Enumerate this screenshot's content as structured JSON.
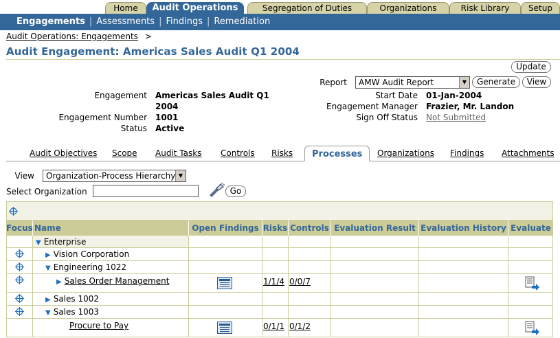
{
  "top_tabs": [
    {
      "label": "Home"
    },
    {
      "label": "Audit Operations"
    },
    {
      "label": "Segregation of Duties"
    },
    {
      "label": "Organizations"
    },
    {
      "label": "Risk Library"
    },
    {
      "label": "Setup"
    }
  ],
  "subnav": {
    "items": [
      "Engagements",
      "Assessments",
      "Findings",
      "Remediation"
    ],
    "sep": "|"
  },
  "breadcrumb": {
    "link": "Audit Operations: Engagements",
    "sep": ">"
  },
  "page_title": "Audit Engagement: Americas Sales Audit Q1 2004",
  "buttons": {
    "update": "Update",
    "generate": "Generate",
    "view": "View",
    "go": "Go"
  },
  "report": {
    "label": "Report",
    "value": "AMW Audit Report"
  },
  "details": {
    "engagement_label": "Engagement",
    "engagement_value_l1": "Americas Sales Audit Q1",
    "engagement_value_l2": "2004",
    "number_label": "Engagement Number",
    "number_value": "1001",
    "status_label": "Status",
    "status_value": "Active",
    "start_label": "Start Date",
    "start_value": "01-Jan-2004",
    "manager_label": "Engagement Manager",
    "manager_value": "Frazier, Mr. Landon",
    "signoff_label": "Sign Off Status",
    "signoff_value": "Not Submitted"
  },
  "subtabs": [
    "Audit Objectives",
    "Scope",
    "Audit Tasks",
    "Controls",
    "Risks",
    "Processes",
    "Organizations",
    "Findings",
    "Attachments"
  ],
  "view": {
    "label": "View",
    "value": "Organization-Process Hierarchy"
  },
  "select_org": {
    "label": "Select Organization",
    "value": ""
  },
  "table": {
    "headers": [
      "Focus",
      "Name",
      "Open Findings",
      "Risks",
      "Controls",
      "Evaluation Result",
      "Evaluation History",
      "Evaluate"
    ],
    "rows": [
      {
        "name": "Enterprise",
        "risks": "",
        "controls": ""
      },
      {
        "name": "Vision Corporation",
        "risks": "",
        "controls": ""
      },
      {
        "name": "Engineering 1022",
        "risks": "",
        "controls": ""
      },
      {
        "name": "Sales Order Management",
        "risks": "1/1/4",
        "controls": "0/0/7"
      },
      {
        "name": "Sales 1002",
        "risks": "",
        "controls": ""
      },
      {
        "name": "Sales 1003",
        "risks": "",
        "controls": ""
      },
      {
        "name": "Procure to Pay",
        "risks": "0/1/1",
        "controls": "0/1/2"
      }
    ]
  },
  "colors": {
    "brand_blue": "#336699",
    "tab_tan": "#d6d3a8",
    "header_tan": "#cccc99"
  },
  "icons": {
    "focus": "crosshair-icon",
    "expand": "triangle-right-icon",
    "collapse": "triangle-down-icon",
    "findings": "findings-list-icon",
    "evaluate": "evaluate-icon",
    "search": "flashlight-search-icon"
  }
}
